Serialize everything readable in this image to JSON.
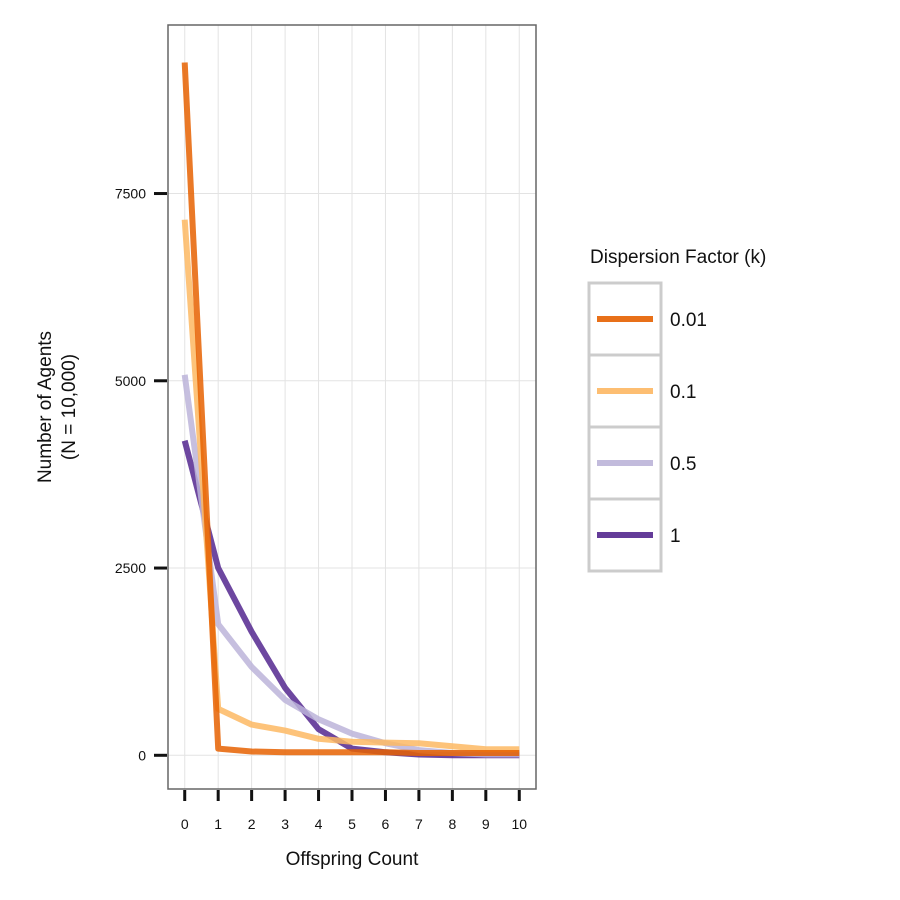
{
  "chart_data": {
    "type": "line",
    "title": "",
    "xlabel": "Offspring Count",
    "ylabel_lines": [
      "Number of Agents",
      "(N = 10,000)"
    ],
    "x": [
      0,
      1,
      2,
      3,
      4,
      5,
      6,
      7,
      8,
      9,
      10
    ],
    "x_ticks": [
      "0",
      "1",
      "2",
      "3",
      "4",
      "5",
      "6",
      "7",
      "8",
      "9",
      "10"
    ],
    "y_ticks": [
      0,
      2500,
      5000,
      7500
    ],
    "y_tick_labels": [
      "0",
      "2500",
      "5000",
      "7500"
    ],
    "xlim": [
      -0.5,
      10.5
    ],
    "ylim": [
      -450,
      9750
    ],
    "grid": true,
    "legend": {
      "title": "Dispersion Factor (k)",
      "placement": "right"
    },
    "series": [
      {
        "name": "1",
        "color": "#54278f",
        "values": [
          4200,
          2500,
          1650,
          900,
          350,
          90,
          40,
          10,
          0,
          0,
          0
        ]
      },
      {
        "name": "0.5",
        "color": "#bcb4d9",
        "values": [
          5080,
          1750,
          1180,
          740,
          480,
          290,
          160,
          70,
          30,
          10,
          10
        ]
      },
      {
        "name": "0.1",
        "color": "#fdb863",
        "values": [
          7150,
          620,
          410,
          330,
          220,
          180,
          170,
          160,
          120,
          80,
          80
        ]
      },
      {
        "name": "0.01",
        "color": "#e66101",
        "values": [
          9250,
          90,
          50,
          40,
          40,
          40,
          40,
          30,
          30,
          30,
          30
        ]
      }
    ],
    "legend_order": [
      "0.01",
      "0.1",
      "0.5",
      "1"
    ]
  }
}
